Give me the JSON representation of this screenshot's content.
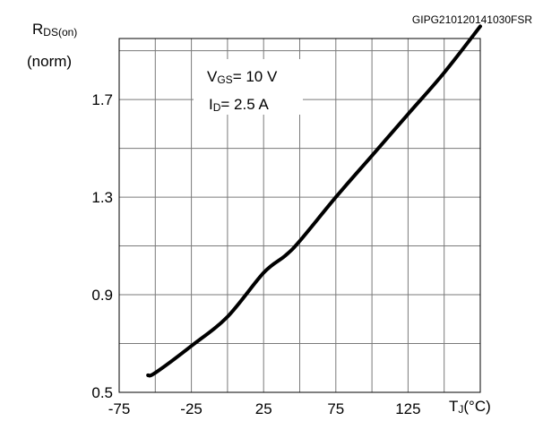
{
  "figure_code": "GIPG210120141030FSR",
  "chart_data": {
    "type": "line",
    "y_label": {
      "main": "R",
      "sub": "DS(on)",
      "unit": "(norm)"
    },
    "x_label": {
      "main": "T",
      "sub": "J",
      "unit": "(°C)"
    },
    "xlim": [
      -75,
      175
    ],
    "ylim": [
      0.5,
      1.95
    ],
    "x_ticks": [
      -75,
      -25,
      25,
      75,
      125
    ],
    "x_tick_labels": [
      "-75",
      "-25",
      "25",
      "75",
      "125"
    ],
    "y_ticks": [
      0.5,
      0.9,
      1.3,
      1.7
    ],
    "y_tick_labels": [
      "0.5",
      "0.9",
      "1.3",
      "1.7"
    ],
    "grid": true,
    "annotations": [
      {
        "main": "V",
        "sub": "GS",
        "rest": "= 10 V"
      },
      {
        "main": "I",
        "sub": "D",
        "rest": "= 2.5 A"
      }
    ],
    "series": [
      {
        "x": [
          -55,
          -50,
          -25,
          0,
          25,
          40,
          50,
          75,
          100,
          125,
          150,
          175
        ],
        "y": [
          0.57,
          0.58,
          0.69,
          0.81,
          0.99,
          1.06,
          1.12,
          1.3,
          1.47,
          1.64,
          1.81,
          2.0
        ]
      }
    ]
  }
}
